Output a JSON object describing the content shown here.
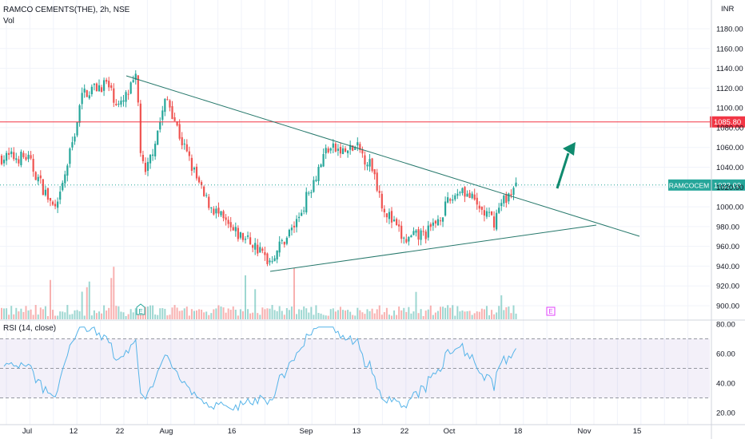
{
  "header": {
    "title": "RAMCO CEMENTS(THE), 2h, NSE",
    "volume_label": "Vol",
    "rsi_label": "RSI (14, close)"
  },
  "chart_data": {
    "type": "candlestick",
    "symbol": "RAMCOCEM",
    "interval": "2h",
    "exchange": "NSE",
    "currency": "INR",
    "price_axis": {
      "range": [
        890,
        1200
      ],
      "ticks": [
        1180,
        1160,
        1140,
        1120,
        1100,
        1080,
        1060,
        1040,
        1020,
        1000,
        980,
        960,
        940,
        920,
        900
      ]
    },
    "time_axis": {
      "labels": [
        "Jul",
        "12",
        "22",
        "Aug",
        "16",
        "Sep",
        "13",
        "22",
        "Oct",
        "18",
        "Nov",
        "15"
      ]
    },
    "series": [
      {
        "name": "RAMCOCEM",
        "approx_close_path": [
          {
            "x": "Jul 1",
            "y": 1050
          },
          {
            "x": "Jul 7",
            "y": 1000
          },
          {
            "x": "Jul 8",
            "y": 995
          },
          {
            "x": "Jul 12",
            "y": 1070
          },
          {
            "x": "Jul 14",
            "y": 1115
          },
          {
            "x": "Jul 19",
            "y": 1125
          },
          {
            "x": "Jul 22",
            "y": 1100
          },
          {
            "x": "Jul 26",
            "y": 1130
          },
          {
            "x": "Jul 27",
            "y": 1050
          },
          {
            "x": "Jul 28",
            "y": 1030
          },
          {
            "x": "Aug 2",
            "y": 1110
          },
          {
            "x": "Aug 3",
            "y": 1100
          },
          {
            "x": "Aug 5",
            "y": 1070
          },
          {
            "x": "Aug 10",
            "y": 1010
          },
          {
            "x": "Aug 16",
            "y": 975
          },
          {
            "x": "Aug 20",
            "y": 965
          },
          {
            "x": "Aug 24",
            "y": 945
          },
          {
            "x": "Aug 30",
            "y": 985
          },
          {
            "x": "Sep 3",
            "y": 1030
          },
          {
            "x": "Sep 6",
            "y": 1060
          },
          {
            "x": "Sep 10",
            "y": 1055
          },
          {
            "x": "Sep 13",
            "y": 1060
          },
          {
            "x": "Sep 16",
            "y": 1040
          },
          {
            "x": "Sep 18",
            "y": 1000
          },
          {
            "x": "Sep 22",
            "y": 965
          },
          {
            "x": "Sep 27",
            "y": 975
          },
          {
            "x": "Oct 1",
            "y": 1005
          },
          {
            "x": "Oct 4",
            "y": 1020
          },
          {
            "x": "Oct 8",
            "y": 1000
          },
          {
            "x": "Oct 12",
            "y": 985
          },
          {
            "x": "Oct 14",
            "y": 1005
          },
          {
            "x": "Oct 18",
            "y": 1022
          }
        ]
      }
    ],
    "last_price": "1022.00",
    "horizontal_level": "1085.80",
    "rsi": {
      "period": 14,
      "source": "close",
      "axis_ticks": [
        80.0,
        60.0,
        40.0,
        20.0
      ],
      "upper_band": 70,
      "middle_band": 50,
      "lower_band": 30
    },
    "annotations": [
      {
        "type": "trendline",
        "description": "descending resistance line from late-July high"
      },
      {
        "type": "trendline",
        "description": "rising support line from late-August low"
      },
      {
        "type": "arrow",
        "direction": "up"
      },
      {
        "type": "marker",
        "text": "E"
      },
      {
        "type": "marker",
        "text": "E"
      }
    ],
    "grid": true
  }
}
